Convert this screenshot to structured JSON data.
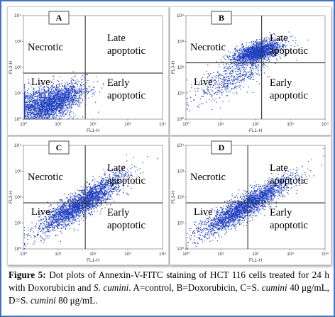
{
  "chart_data": [
    {
      "type": "scatter",
      "panel_label": "A",
      "xlabel": "FL1-H",
      "ylabel": "FL3-H",
      "x_ticks": [
        "10⁰",
        "10¹",
        "10²",
        "10³",
        "10⁴"
      ],
      "y_ticks": [
        "10⁰",
        "10¹",
        "10²",
        "10³",
        "10⁴"
      ],
      "xscale": "log",
      "yscale": "log",
      "xlim": [
        1,
        10000
      ],
      "ylim": [
        1,
        10000
      ],
      "quadrant_gate": {
        "x": 60,
        "y": 60
      },
      "quadrant_labels": {
        "top_left": "Necrotic",
        "top_right_1": "Late",
        "top_right_2": "apoptotic",
        "bottom_left": "Live",
        "bottom_right_1": "Early",
        "bottom_right_2": "apoptotic"
      },
      "point_color": "#1f3fbf"
    },
    {
      "type": "scatter",
      "panel_label": "B",
      "xlabel": "FL1-H",
      "ylabel": "FL3-H",
      "x_ticks": [
        "10⁰",
        "10¹",
        "10²",
        "10³",
        "10⁴"
      ],
      "y_ticks": [
        "10⁰",
        "10¹",
        "10²",
        "10³",
        "10⁴"
      ],
      "xscale": "log",
      "yscale": "log",
      "xlim": [
        1,
        10000
      ],
      "ylim": [
        1,
        10000
      ],
      "quadrant_gate": {
        "x": 150,
        "y": 150
      },
      "quadrant_labels": {
        "top_left": "Necrotic",
        "top_right_1": "Late",
        "top_right_2": "apoptotic",
        "bottom_left": "Live",
        "bottom_right_1": "Early",
        "bottom_right_2": "apoptotic"
      },
      "point_color": "#1f3fbf"
    },
    {
      "type": "scatter",
      "panel_label": "C",
      "xlabel": "FL1-H",
      "ylabel": "FL3-H",
      "x_ticks": [
        "10⁰",
        "10¹",
        "10²",
        "10³",
        "10⁴"
      ],
      "y_ticks": [
        "10⁰",
        "10¹",
        "10²",
        "10³",
        "10⁴"
      ],
      "xscale": "log",
      "yscale": "log",
      "xlim": [
        1,
        10000
      ],
      "ylim": [
        1,
        10000
      ],
      "quadrant_gate": {
        "x": 60,
        "y": 60
      },
      "quadrant_labels": {
        "top_left": "Necrotic",
        "top_right_1": "Late",
        "top_right_2": "apoptotic",
        "bottom_left": "Live",
        "bottom_right_1": "Early",
        "bottom_right_2": "apoptotic"
      },
      "point_color": "#1f3fbf"
    },
    {
      "type": "scatter",
      "panel_label": "D",
      "xlabel": "FL1-H",
      "ylabel": "FL3-H",
      "x_ticks": [
        "10⁰",
        "10¹",
        "10²",
        "10³",
        "10⁴"
      ],
      "y_ticks": [
        "10⁰",
        "10¹",
        "10²",
        "10³",
        "10⁴"
      ],
      "xscale": "log",
      "yscale": "log",
      "xlim": [
        1,
        10000
      ],
      "ylim": [
        1,
        10000
      ],
      "quadrant_gate": {
        "x": 60,
        "y": 60
      },
      "quadrant_labels": {
        "top_left": "Necrotic",
        "top_right_1": "Late",
        "top_right_2": "apoptotic",
        "bottom_left": "Live",
        "bottom_right_1": "Early",
        "bottom_right_2": "apoptotic"
      },
      "point_color": "#1f3fbf"
    }
  ],
  "caption": {
    "figure_label": "Figure 5:",
    "text_1": " Dot plots of Annexin-V-FITC staining of HCT 116 cells treated for 24 h with Doxorubicin and ",
    "species_1": "S. cumini",
    "text_2": ". A=control, B=Doxorubicin, C=S. ",
    "species_2": "cumini",
    "text_3": " 40 μg/mL, D=S. ",
    "species_3": "cumini",
    "text_4": " 80 μg/mL."
  },
  "colors": {
    "frame_border": "#4472c4",
    "dots": "#1f3fbf",
    "gate_lines": "#333333"
  }
}
